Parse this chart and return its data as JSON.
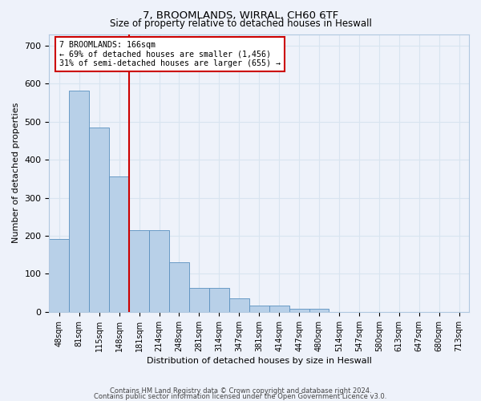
{
  "title1": "7, BROOMLANDS, WIRRAL, CH60 6TF",
  "title2": "Size of property relative to detached houses in Heswall",
  "xlabel": "Distribution of detached houses by size in Heswall",
  "ylabel": "Number of detached properties",
  "categories": [
    "48sqm",
    "81sqm",
    "115sqm",
    "148sqm",
    "181sqm",
    "214sqm",
    "248sqm",
    "281sqm",
    "314sqm",
    "347sqm",
    "381sqm",
    "414sqm",
    "447sqm",
    "480sqm",
    "514sqm",
    "547sqm",
    "580sqm",
    "613sqm",
    "647sqm",
    "680sqm",
    "713sqm"
  ],
  "values": [
    192,
    582,
    485,
    355,
    215,
    215,
    131,
    63,
    63,
    35,
    17,
    17,
    9,
    9,
    0,
    0,
    0,
    0,
    0,
    0,
    0
  ],
  "bar_color": "#b8d0e8",
  "bar_edge_color": "#5a90c0",
  "vline_color": "#cc0000",
  "annotation_text": "7 BROOMLANDS: 166sqm\n← 69% of detached houses are smaller (1,456)\n31% of semi-detached houses are larger (655) →",
  "annotation_box_color": "#cc0000",
  "background_color": "#eef2fa",
  "grid_color": "#d8e4f0",
  "footer1": "Contains HM Land Registry data © Crown copyright and database right 2024.",
  "footer2": "Contains public sector information licensed under the Open Government Licence v3.0.",
  "ylim": [
    0,
    730
  ],
  "yticks": [
    0,
    100,
    200,
    300,
    400,
    500,
    600,
    700
  ]
}
